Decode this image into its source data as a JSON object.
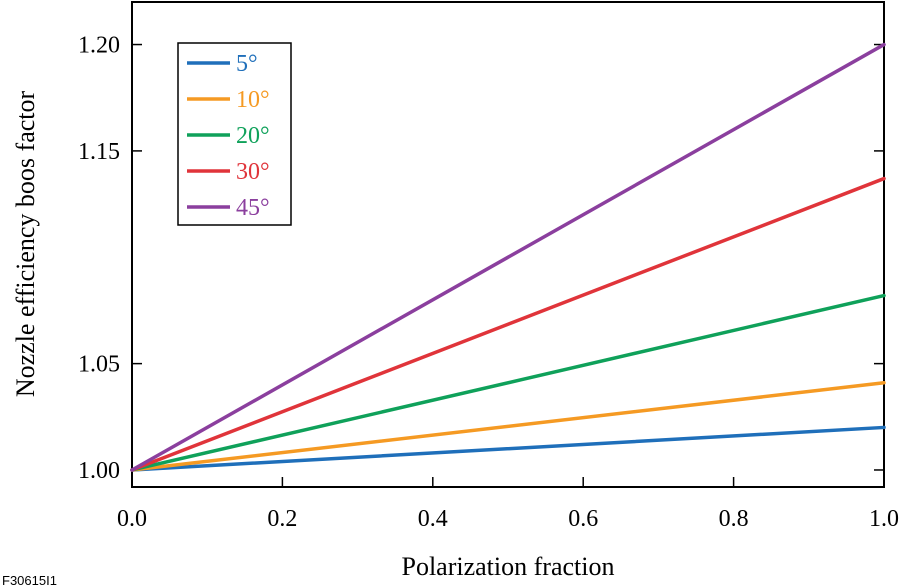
{
  "chart_data": {
    "type": "line",
    "xlabel": "Polarization fraction",
    "ylabel": "Nozzle efficiency boos factor",
    "xlim": [
      0.0,
      1.0
    ],
    "ylim": [
      0.992,
      1.22
    ],
    "xticks": [
      "0.0",
      "0.2",
      "0.4",
      "0.6",
      "0.8",
      "1.0"
    ],
    "xtick_values": [
      0.0,
      0.2,
      0.4,
      0.6,
      0.8,
      1.0
    ],
    "yticks": [
      "1.00",
      "1.05",
      "1.15",
      "1.20"
    ],
    "ytick_values": [
      1.0,
      1.05,
      1.15,
      1.2
    ],
    "x": [
      0.0,
      1.0
    ],
    "series": [
      {
        "name": "5°",
        "color": "#1f6fba",
        "values": [
          1.0,
          1.02
        ]
      },
      {
        "name": "10°",
        "color": "#f59a23",
        "values": [
          1.0,
          1.041
        ]
      },
      {
        "name": "20°",
        "color": "#0fa15a",
        "values": [
          1.0,
          1.082
        ]
      },
      {
        "name": "30°",
        "color": "#e0343a",
        "values": [
          1.0,
          1.137
        ]
      },
      {
        "name": "45°",
        "color": "#8b3f9e",
        "values": [
          1.0,
          1.2
        ]
      }
    ],
    "grid": false,
    "legend_position": "top-left"
  },
  "footnote": "F30615I1"
}
